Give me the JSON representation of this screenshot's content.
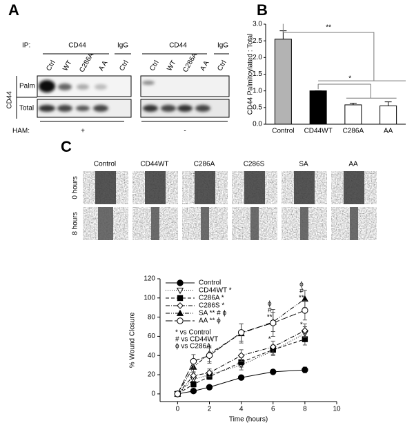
{
  "panel_labels": [
    "A",
    "B",
    "C"
  ],
  "blot": {
    "ip_label": "IP:",
    "groups": [
      "CD44",
      "IgG",
      "CD44",
      "IgG"
    ],
    "lanes_left": [
      "Ctrl",
      "WT",
      "C286A",
      "A A",
      "Ctrl"
    ],
    "lanes_right": [
      "Ctrl",
      "WT",
      "C286A",
      "A A",
      "Ctrl"
    ],
    "side_label": "CD44",
    "rows": [
      "Palm",
      "Total"
    ],
    "ham_label": "HAM:",
    "ham_values": [
      "+",
      "-"
    ]
  },
  "images": {
    "columns": [
      "Control",
      "CD44WT",
      "C286A",
      "C286S",
      "SA",
      "AA"
    ],
    "rows": [
      "0 hours",
      "8 hours"
    ]
  },
  "chart_data": [
    {
      "type": "bar",
      "y_label": "CD44 Palmitoylated : Total",
      "categories": [
        "Control",
        "CD44WT",
        "C286A",
        "AA"
      ],
      "values": [
        2.55,
        1.0,
        0.58,
        0.55
      ],
      "errors": [
        0.25,
        0,
        0.05,
        0.12
      ],
      "colors": [
        "#b3b3b3",
        "#000000",
        "#ffffff",
        "#ffffff"
      ],
      "ylim": [
        0,
        3.0
      ],
      "yticks": [
        {
          "value": 0,
          "label": "0.0"
        },
        {
          "value": 0.5,
          "label": "0.5"
        },
        {
          "value": 1,
          "label": "1.0"
        },
        {
          "value": 1.5,
          "label": "1.5"
        },
        {
          "value": 2,
          "label": "2.0"
        },
        {
          "value": 2.5,
          "label": "2.5"
        },
        {
          "value": 3,
          "label": "3.0"
        }
      ],
      "annotations": [
        "**",
        "*"
      ]
    },
    {
      "type": "line",
      "x_label": "Time (hours)",
      "y_label": "% Wound Closure",
      "x": [
        0,
        1,
        2,
        4,
        6,
        8
      ],
      "xlim": [
        -1.1,
        10
      ],
      "xticks": [
        0,
        2,
        4,
        6,
        8,
        10
      ],
      "ylim": [
        -8,
        120
      ],
      "yticks": [
        0,
        20,
        40,
        60,
        80,
        100,
        120
      ],
      "series": [
        {
          "name": "Control",
          "color": "#000000",
          "dash": "",
          "marker": "circle",
          "filled": true,
          "values": [
            0,
            3,
            7,
            17,
            23,
            25
          ],
          "errors": [
            0,
            1,
            1,
            2,
            2,
            3
          ]
        },
        {
          "name": "CD44WT *",
          "color": "#000000",
          "dash": "1,2",
          "marker": "triangle-down",
          "filled": false,
          "values": [
            0,
            15,
            20,
            30,
            45,
            63
          ],
          "errors": [
            0,
            4,
            4,
            5,
            5,
            7
          ]
        },
        {
          "name": "C286A *",
          "color": "#000000",
          "dash": "5,3",
          "marker": "square",
          "filled": true,
          "values": [
            0,
            10,
            18,
            33,
            46,
            57
          ],
          "errors": [
            0,
            3,
            3,
            5,
            5,
            6
          ]
        },
        {
          "name": "C286S *",
          "color": "#000000",
          "dash": "6,2,1,2",
          "marker": "diamond",
          "filled": false,
          "values": [
            0,
            19,
            22,
            40,
            49,
            66
          ],
          "errors": [
            0,
            4,
            4,
            6,
            6,
            7
          ]
        },
        {
          "name": "SA ** # ϕ",
          "color": "#000000",
          "dash": "6,2,1,2,1,2",
          "marker": "triangle",
          "filled": true,
          "values": [
            0,
            28,
            42,
            63,
            75,
            99
          ],
          "errors": [
            0,
            6,
            8,
            10,
            10,
            9
          ]
        },
        {
          "name": "AA ** ϕ",
          "color": "#000000",
          "dash": "10,3",
          "marker": "circle",
          "filled": false,
          "values": [
            0,
            34,
            40,
            64,
            74,
            87
          ],
          "errors": [
            0,
            7,
            8,
            9,
            14,
            10
          ]
        }
      ],
      "footnotes": [
        "*   vs Control",
        "#   vs CD44WT",
        "ϕ   vs C286A"
      ],
      "annotations": [
        {
          "text": "ϕ",
          "x": 6,
          "y": 94
        },
        {
          "text": "#",
          "x": 6,
          "y": 87
        },
        {
          "text": "**",
          "x": 6,
          "y": 80
        },
        {
          "text": "*",
          "x": 6,
          "y": 57
        },
        {
          "text": "ϕ",
          "x": 8,
          "y": 114
        },
        {
          "text": "#",
          "x": 8,
          "y": 107
        },
        {
          "text": "**",
          "x": 8,
          "y": 100
        },
        {
          "text": "*",
          "x": 8,
          "y": 72
        }
      ]
    }
  ]
}
